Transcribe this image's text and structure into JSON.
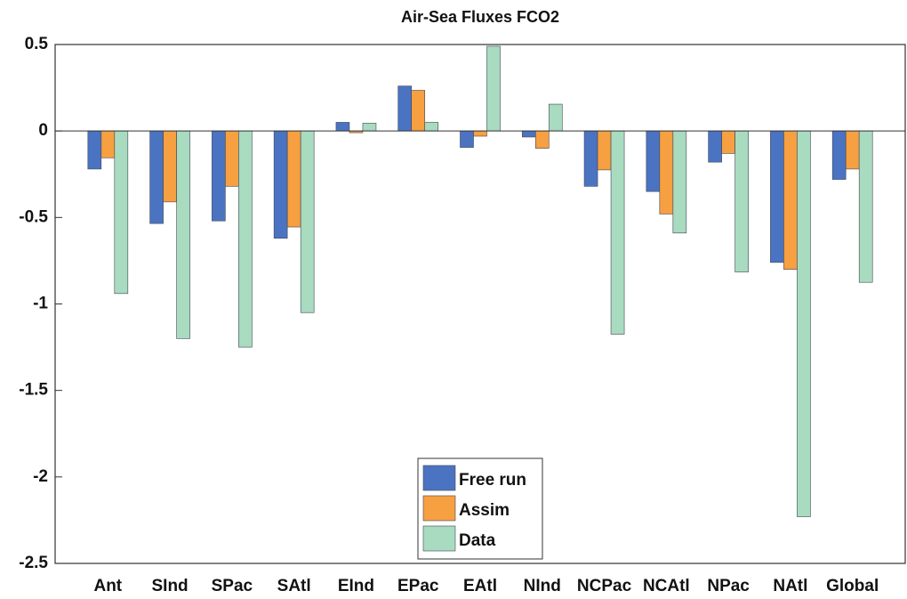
{
  "chart_data": {
    "type": "bar",
    "title": "Air-Sea Fluxes FCO2",
    "categories": [
      "Ant",
      "SInd",
      "SPac",
      "SAtl",
      "EInd",
      "EPac",
      "EAtl",
      "NInd",
      "NCPac",
      "NCAtl",
      "NPac",
      "NAtl",
      "Global"
    ],
    "series": [
      {
        "name": "Free run",
        "color": "#4a74c2",
        "values": [
          -0.22,
          -0.535,
          -0.52,
          -0.62,
          0.05,
          0.26,
          -0.095,
          -0.035,
          -0.32,
          -0.35,
          -0.18,
          -0.76,
          -0.28
        ]
      },
      {
        "name": "Assim",
        "color": "#f6a041",
        "values": [
          -0.155,
          -0.41,
          -0.32,
          -0.555,
          -0.01,
          0.235,
          -0.03,
          -0.1,
          -0.225,
          -0.48,
          -0.13,
          -0.8,
          -0.22
        ]
      },
      {
        "name": "Data",
        "color": "#a8dbc0",
        "values": [
          -0.94,
          -1.2,
          -1.25,
          -1.05,
          0.045,
          0.05,
          0.49,
          0.155,
          -1.175,
          -0.59,
          -0.815,
          -2.23,
          -0.875
        ]
      }
    ],
    "ylim": [
      -2.5,
      0.5
    ],
    "yticks": [
      0.5,
      0,
      -0.5,
      -1,
      -1.5,
      -2,
      -2.5
    ],
    "grid": false,
    "legend": "bottom-center"
  }
}
